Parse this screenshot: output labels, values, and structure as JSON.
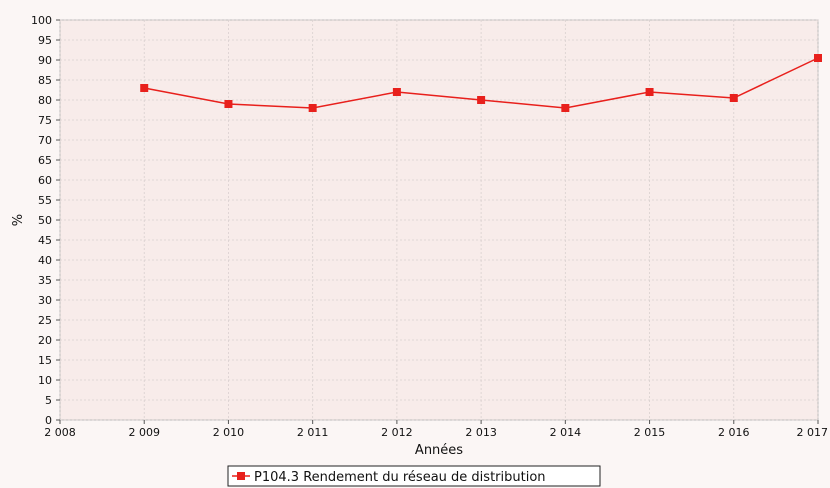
{
  "chart_data": {
    "type": "line",
    "title": "",
    "xlabel": "Années",
    "ylabel": "%",
    "x_ticks": [
      "2 008",
      "2 009",
      "2 010",
      "2 011",
      "2 012",
      "2 013",
      "2 014",
      "2 015",
      "2 016",
      "2 017"
    ],
    "y_ticks": [
      "0",
      "5",
      "10",
      "15",
      "20",
      "25",
      "30",
      "35",
      "40",
      "45",
      "50",
      "55",
      "60",
      "65",
      "70",
      "75",
      "80",
      "85",
      "90",
      "95",
      "100"
    ],
    "xlim": [
      2008,
      2017
    ],
    "ylim": [
      0,
      100
    ],
    "grid": true,
    "legend_position": "bottom-center",
    "series": [
      {
        "name": "P104.3 Rendement du réseau de distribution",
        "color": "#e8201c",
        "marker": "square",
        "x": [
          2009,
          2010,
          2011,
          2012,
          2013,
          2014,
          2015,
          2016,
          2017
        ],
        "values": [
          83,
          79,
          78,
          82,
          80,
          78,
          82,
          80.5,
          90.5
        ]
      }
    ]
  }
}
